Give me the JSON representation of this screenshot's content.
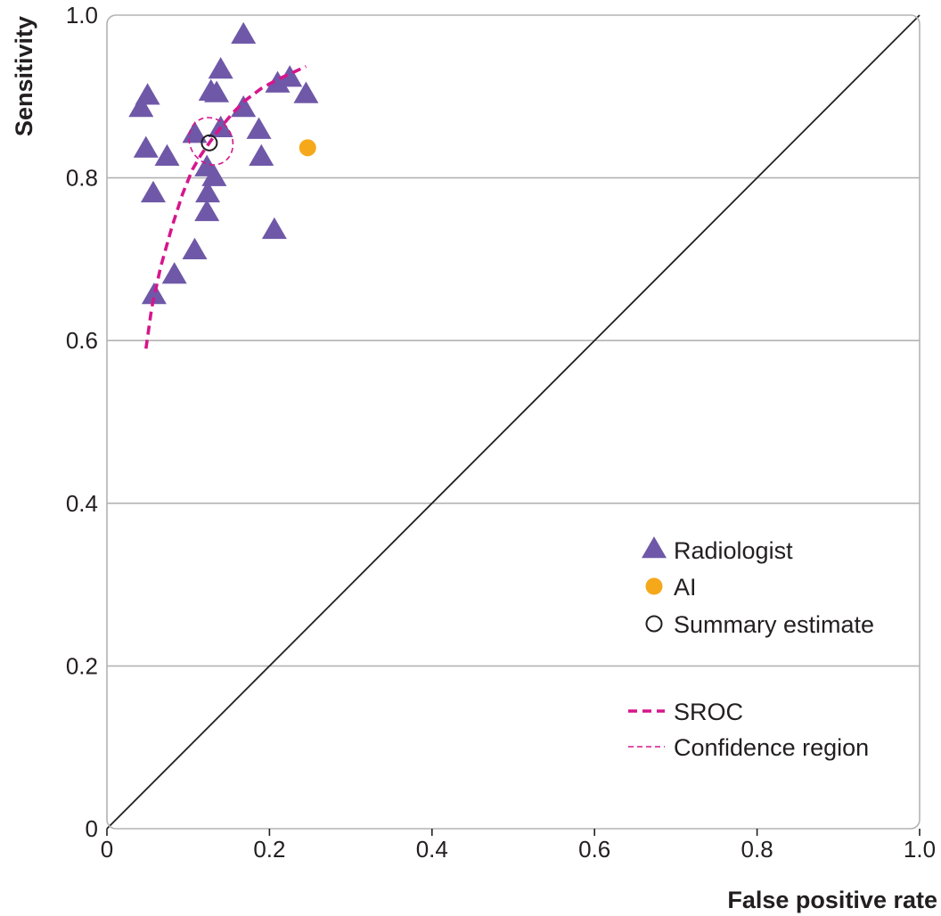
{
  "chart_data": {
    "type": "scatter",
    "title": "",
    "xlabel": "False positive rate",
    "ylabel": "Sensitivity",
    "xlim": [
      0,
      1
    ],
    "ylim": [
      0,
      1
    ],
    "x_ticks": [
      0,
      0.2,
      0.4,
      0.6,
      0.8,
      1.0
    ],
    "x_tick_labels": [
      "0",
      "0.2",
      "0.4",
      "0.6",
      "0.8",
      "1.0"
    ],
    "y_ticks": [
      0,
      0.2,
      0.4,
      0.6,
      0.8,
      1.0
    ],
    "y_tick_labels": [
      "0",
      "0.2",
      "0.4",
      "0.6",
      "0.8",
      "1.0"
    ],
    "grid": "horizontal",
    "legend_position": "bottom-right",
    "colors": {
      "radiologist": "#6f58a8",
      "ai": "#f6a81b",
      "sroc": "#d6168c",
      "summary": "#231f20",
      "grid": "#b3b3b3",
      "diagonal": "#231f20"
    },
    "series": [
      {
        "name": "Radiologist",
        "marker": "triangle",
        "points": [
          {
            "x": 0.168,
            "y": 0.975
          },
          {
            "x": 0.14,
            "y": 0.932
          },
          {
            "x": 0.128,
            "y": 0.905
          },
          {
            "x": 0.135,
            "y": 0.903
          },
          {
            "x": 0.05,
            "y": 0.9
          },
          {
            "x": 0.042,
            "y": 0.885
          },
          {
            "x": 0.21,
            "y": 0.915
          },
          {
            "x": 0.225,
            "y": 0.922
          },
          {
            "x": 0.245,
            "y": 0.902
          },
          {
            "x": 0.168,
            "y": 0.885
          },
          {
            "x": 0.108,
            "y": 0.853
          },
          {
            "x": 0.14,
            "y": 0.86
          },
          {
            "x": 0.187,
            "y": 0.858
          },
          {
            "x": 0.048,
            "y": 0.835
          },
          {
            "x": 0.074,
            "y": 0.825
          },
          {
            "x": 0.19,
            "y": 0.825
          },
          {
            "x": 0.123,
            "y": 0.812
          },
          {
            "x": 0.132,
            "y": 0.8
          },
          {
            "x": 0.057,
            "y": 0.78
          },
          {
            "x": 0.124,
            "y": 0.78
          },
          {
            "x": 0.123,
            "y": 0.757
          },
          {
            "x": 0.206,
            "y": 0.735
          },
          {
            "x": 0.108,
            "y": 0.71
          },
          {
            "x": 0.083,
            "y": 0.68
          },
          {
            "x": 0.058,
            "y": 0.655
          }
        ]
      },
      {
        "name": "AI",
        "marker": "circle",
        "points": [
          {
            "x": 0.247,
            "y": 0.837
          }
        ]
      },
      {
        "name": "Summary estimate",
        "marker": "open-circle",
        "points": [
          {
            "x": 0.126,
            "y": 0.843
          }
        ]
      }
    ],
    "sroc_curve": {
      "name": "SROC",
      "x": [
        0.048,
        0.055,
        0.066,
        0.08,
        0.093,
        0.105,
        0.115,
        0.126,
        0.14,
        0.155,
        0.17,
        0.19,
        0.21,
        0.23,
        0.245
      ],
      "y": [
        0.59,
        0.64,
        0.69,
        0.74,
        0.78,
        0.81,
        0.827,
        0.843,
        0.862,
        0.88,
        0.895,
        0.91,
        0.921,
        0.93,
        0.937
      ]
    },
    "confidence_region": {
      "name": "Confidence region",
      "center": {
        "x": 0.128,
        "y": 0.845
      },
      "semi_axis_fpr": 0.026,
      "semi_axis_sens": 0.03,
      "tilt_deg": 30
    },
    "diagonal": {
      "from": [
        0,
        0
      ],
      "to": [
        1,
        1
      ]
    },
    "legend": [
      {
        "label": "Radiologist",
        "marker": "triangle"
      },
      {
        "label": "AI",
        "marker": "circle"
      },
      {
        "label": "Summary estimate",
        "marker": "open-circle"
      },
      {
        "label": "SROC",
        "marker": "thick-dash"
      },
      {
        "label": "Confidence region",
        "marker": "thin-dash"
      }
    ]
  }
}
